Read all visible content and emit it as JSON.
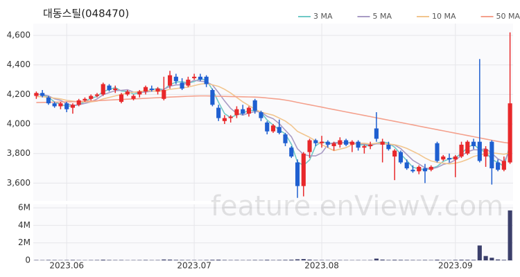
{
  "chart_data": {
    "type": "candlestick",
    "title": "대동스틸(048470)",
    "watermark": "feature.enViewV.com",
    "legend_position": "top-right",
    "up_color": "#e8282b",
    "down_color": "#1f5fd0",
    "grid": true,
    "categories": [
      null,
      null,
      null,
      null,
      null,
      "2023.06",
      null,
      null,
      null,
      null,
      null,
      null,
      null,
      null,
      null,
      null,
      null,
      null,
      null,
      null,
      null,
      null,
      null,
      null,
      null,
      null,
      "2023.07",
      null,
      null,
      null,
      null,
      null,
      null,
      null,
      null,
      null,
      null,
      null,
      null,
      null,
      null,
      null,
      null,
      null,
      null,
      null,
      null,
      "2023.08",
      null,
      null,
      null,
      null,
      null,
      null,
      null,
      null,
      null,
      null,
      null,
      null,
      null,
      null,
      null,
      null,
      null,
      null,
      null,
      null,
      null,
      "2023.09",
      null,
      null,
      null,
      null,
      null,
      null,
      null,
      null,
      null
    ],
    "open": [
      4190,
      4210,
      4180,
      4140,
      4120,
      4140,
      4110,
      4130,
      4160,
      4170,
      4190,
      4200,
      4260,
      4230,
      4150,
      4200,
      4170,
      4200,
      4220,
      4240,
      4220,
      4170,
      4260,
      4320,
      4280,
      4260,
      4310,
      4320,
      4320,
      4230,
      4110,
      4020,
      4040,
      4060,
      4100,
      4070,
      4160,
      4080,
      4010,
      3950,
      3980,
      3930,
      3840,
      3740,
      3580,
      3810,
      3890,
      3870,
      3880,
      3850,
      3860,
      3890,
      3860,
      3880,
      3840,
      3850,
      3970,
      3860,
      3860,
      3780,
      3810,
      3740,
      3690,
      3680,
      3700,
      3690,
      3870,
      3760,
      3770,
      3760,
      3780,
      3800,
      3880,
      3880,
      3780,
      3880,
      3740,
      3690,
      3740
    ],
    "high": [
      4220,
      4230,
      4190,
      4150,
      4150,
      4150,
      4140,
      4170,
      4180,
      4200,
      4210,
      4280,
      4270,
      4260,
      4210,
      4230,
      4200,
      4230,
      4260,
      4260,
      4250,
      4320,
      4360,
      4340,
      4310,
      4320,
      4340,
      4340,
      4330,
      4240,
      4130,
      4060,
      4060,
      4120,
      4130,
      4120,
      4170,
      4090,
      4020,
      4000,
      4030,
      3940,
      3850,
      3760,
      3810,
      3900,
      3900,
      3920,
      3890,
      3880,
      3910,
      3900,
      3890,
      3890,
      3860,
      3880,
      4080,
      3900,
      3880,
      3830,
      3820,
      3760,
      3720,
      3720,
      3730,
      3720,
      3880,
      3790,
      3800,
      3790,
      3880,
      3890,
      3900,
      4440,
      3850,
      3890,
      3760,
      3780,
      4620
    ],
    "low": [
      4170,
      4180,
      4130,
      4110,
      4100,
      4080,
      4070,
      4120,
      4150,
      4160,
      4180,
      4190,
      4220,
      4210,
      4140,
      4190,
      4160,
      4180,
      4200,
      4220,
      4200,
      4160,
      4240,
      4270,
      4230,
      4250,
      4300,
      4290,
      4250,
      4120,
      4020,
      4000,
      4010,
      4040,
      4060,
      4050,
      4070,
      4020,
      3930,
      3940,
      3930,
      3850,
      3770,
      3500,
      3510,
      3770,
      3850,
      3840,
      3840,
      3820,
      3840,
      3850,
      3810,
      3820,
      3800,
      3830,
      3880,
      3740,
      3820,
      3620,
      3730,
      3690,
      3670,
      3660,
      3600,
      3680,
      3740,
      3750,
      3740,
      3640,
      3770,
      3790,
      3830,
      3740,
      3710,
      3590,
      3680,
      3680,
      3730
    ],
    "close": [
      4210,
      4190,
      4140,
      4120,
      4140,
      4100,
      4130,
      4160,
      4170,
      4190,
      4200,
      4270,
      4230,
      4240,
      4200,
      4220,
      4190,
      4220,
      4250,
      4230,
      4240,
      4230,
      4330,
      4290,
      4240,
      4300,
      4320,
      4300,
      4270,
      4130,
      4040,
      4040,
      4050,
      4100,
      4070,
      4110,
      4090,
      4040,
      3950,
      3990,
      3940,
      3870,
      3780,
      3580,
      3800,
      3890,
      3870,
      3880,
      3860,
      3870,
      3890,
      3860,
      3880,
      3840,
      3850,
      3860,
      3900,
      3880,
      3830,
      3820,
      3740,
      3700,
      3680,
      3710,
      3680,
      3710,
      3750,
      3780,
      3760,
      3780,
      3860,
      3880,
      3850,
      3750,
      3830,
      3700,
      3690,
      3750,
      4140
    ],
    "ylim": [
      3480,
      4680
    ],
    "yticks": [
      {
        "value": 3600,
        "label": "3,600"
      },
      {
        "value": 3800,
        "label": "3,800"
      },
      {
        "value": 4000,
        "label": "4,000"
      },
      {
        "value": 4200,
        "label": "4,200"
      },
      {
        "value": 4400,
        "label": "4,400"
      },
      {
        "value": 4600,
        "label": "4,600"
      }
    ],
    "series": [
      {
        "name": "3 MA",
        "color": "#6fc9c6",
        "values": [
          4200,
          4200,
          4180,
          4150,
          4133,
          4120,
          4123,
          4130,
          4153,
          4173,
          4187,
          4220,
          4233,
          4247,
          4223,
          4220,
          4203,
          4210,
          4220,
          4233,
          4240,
          4233,
          4267,
          4283,
          4287,
          4277,
          4287,
          4307,
          4297,
          4233,
          4147,
          4070,
          4043,
          4063,
          4073,
          4093,
          4090,
          4080,
          4027,
          3993,
          3960,
          3933,
          3863,
          3743,
          3720,
          3757,
          3853,
          3880,
          3870,
          3870,
          3873,
          3873,
          3877,
          3860,
          3857,
          3850,
          3870,
          3880,
          3870,
          3843,
          3797,
          3753,
          3707,
          3697,
          3690,
          3700,
          3713,
          3747,
          3763,
          3773,
          3800,
          3840,
          3863,
          3827,
          3810,
          3760,
          3740,
          3713,
          3860
        ]
      },
      {
        "name": "5 MA",
        "color": "#a99bc4",
        "values": [
          4200,
          4200,
          4190,
          4170,
          4160,
          4138,
          4126,
          4130,
          4140,
          4150,
          4170,
          4198,
          4212,
          4226,
          4228,
          4232,
          4216,
          4214,
          4216,
          4222,
          4226,
          4234,
          4256,
          4264,
          4266,
          4278,
          4296,
          4290,
          4286,
          4264,
          4212,
          4156,
          4106,
          4072,
          4060,
          4074,
          4084,
          4082,
          4052,
          4036,
          4002,
          3958,
          3914,
          3832,
          3794,
          3784,
          3784,
          3804,
          3860,
          3874,
          3874,
          3872,
          3872,
          3868,
          3864,
          3858,
          3866,
          3866,
          3864,
          3858,
          3834,
          3794,
          3754,
          3730,
          3702,
          3696,
          3706,
          3726,
          3736,
          3756,
          3786,
          3812,
          3826,
          3824,
          3834,
          3802,
          3764,
          3744,
          3822
        ]
      },
      {
        "name": "10 MA",
        "color": "#f2c58e",
        "values": [
          4185,
          4185,
          4180,
          4175,
          4170,
          4160,
          4155,
          4150,
          4150,
          4150,
          4155,
          4170,
          4180,
          4190,
          4200,
          4210,
          4215,
          4220,
          4225,
          4225,
          4220,
          4225,
          4235,
          4240,
          4245,
          4250,
          4260,
          4270,
          4275,
          4265,
          4255,
          4235,
          4210,
          4180,
          4150,
          4125,
          4100,
          4080,
          4070,
          4060,
          4040,
          4020,
          3990,
          3950,
          3930,
          3910,
          3885,
          3860,
          3840,
          3820,
          3830,
          3840,
          3860,
          3870,
          3870,
          3865,
          3870,
          3870,
          3865,
          3860,
          3850,
          3835,
          3815,
          3795,
          3770,
          3750,
          3740,
          3735,
          3730,
          3735,
          3745,
          3760,
          3780,
          3790,
          3800,
          3805,
          3800,
          3795,
          3805
        ]
      },
      {
        "name": "50 MA",
        "color": "#f4a08c",
        "values": [
          4145,
          4146,
          4147,
          4148,
          4149,
          4150,
          4151,
          4152,
          4154,
          4156,
          4158,
          4160,
          4162,
          4164,
          4166,
          4168,
          4170,
          4172,
          4174,
          4176,
          4178,
          4180,
          4182,
          4184,
          4186,
          4188,
          4189,
          4190,
          4190,
          4189,
          4188,
          4187,
          4186,
          4185,
          4184,
          4183,
          4182,
          4180,
          4176,
          4172,
          4168,
          4162,
          4155,
          4146,
          4138,
          4130,
          4122,
          4114,
          4106,
          4098,
          4090,
          4082,
          4074,
          4066,
          4058,
          4050,
          4042,
          4034,
          4026,
          4018,
          4010,
          4002,
          3994,
          3986,
          3978,
          3970,
          3962,
          3954,
          3946,
          3938,
          3930,
          3922,
          3914,
          3906,
          3898,
          3890,
          3882,
          3875,
          3870
        ]
      }
    ],
    "volume": {
      "color": "#3b3f6b",
      "ylim": [
        0,
        6400000
      ],
      "yticks": [
        0,
        {
          "value": 2000000,
          "label": "2M"
        },
        {
          "value": 4000000,
          "label": "4M"
        },
        {
          "value": 6000000,
          "label": "6M"
        }
      ],
      "values": [
        40000,
        35000,
        50000,
        45000,
        30000,
        40000,
        55000,
        35000,
        30000,
        40000,
        45000,
        80000,
        50000,
        40000,
        45000,
        30000,
        35000,
        40000,
        50000,
        35000,
        40000,
        100000,
        90000,
        60000,
        50000,
        45000,
        40000,
        35000,
        50000,
        70000,
        80000,
        50000,
        40000,
        45000,
        35000,
        40000,
        50000,
        45000,
        70000,
        40000,
        50000,
        60000,
        80000,
        120000,
        150000,
        90000,
        50000,
        40000,
        35000,
        30000,
        40000,
        35000,
        30000,
        35000,
        30000,
        40000,
        200000,
        90000,
        50000,
        70000,
        60000,
        50000,
        45000,
        40000,
        50000,
        40000,
        80000,
        40000,
        35000,
        60000,
        80000,
        70000,
        60000,
        1700000,
        500000,
        300000,
        100000,
        60000,
        5700000
      ]
    }
  }
}
